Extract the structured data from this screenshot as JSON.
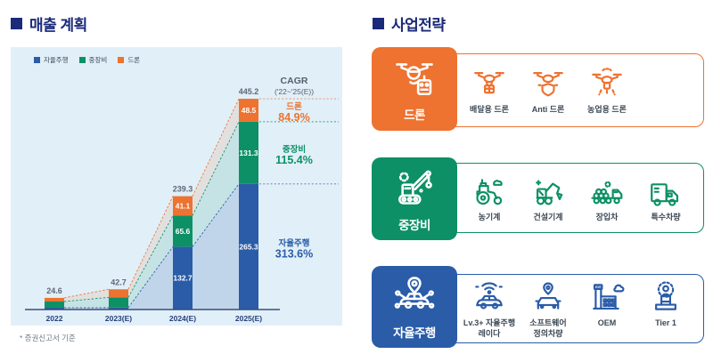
{
  "left": {
    "title": "매출 계획",
    "footnote": "* 증권신고서 기준"
  },
  "right": {
    "title": "사업전략",
    "rows": [
      {
        "label": "드론",
        "color": "#ee7230",
        "icon": "drone-remote-icon",
        "items": [
          {
            "icon": "delivery-drone-icon",
            "label": "배달용 드론"
          },
          {
            "icon": "anti-drone-icon",
            "label": "Anti 드론"
          },
          {
            "icon": "agri-drone-icon",
            "label": "농업용 드론"
          }
        ]
      },
      {
        "label": "중장비",
        "color": "#0d9065",
        "icon": "crawler-crane-icon",
        "items": [
          {
            "icon": "tractor-icon",
            "label": "농기계"
          },
          {
            "icon": "excavator-icon",
            "label": "건설기계"
          },
          {
            "icon": "loader-truck-icon",
            "label": "장입차"
          },
          {
            "icon": "special-vehicle-icon",
            "label": "특수차량"
          }
        ]
      },
      {
        "label": "자율주행",
        "color": "#2a5ca8",
        "icon": "autonomous-car-icon",
        "items": [
          {
            "icon": "radar-car-icon",
            "label": "Lv.3+ 자율주행\n레이다"
          },
          {
            "icon": "sdv-car-icon",
            "label": "소프트웨어\n정의차량"
          },
          {
            "icon": "factory-oem-icon",
            "label": "OEM"
          },
          {
            "icon": "podium-person-icon",
            "label": "Tier 1"
          }
        ]
      }
    ]
  },
  "chart_data": {
    "type": "bar",
    "stacked": true,
    "title": "매출 계획",
    "categories": [
      "2022",
      "2023(E)",
      "2024(E)",
      "2025(E)"
    ],
    "series": [
      {
        "name": "자율주행",
        "color": "#2a5ca8",
        "values": [
          3.8,
          4.0,
          132.7,
          265.3
        ],
        "value_labels": [
          null,
          null,
          "132.7",
          "265.3"
        ]
      },
      {
        "name": "중장비",
        "color": "#0d9065",
        "values": [
          13.1,
          21.7,
          65.6,
          131.3
        ],
        "value_labels": [
          null,
          null,
          "65.6",
          "131.3"
        ]
      },
      {
        "name": "드론",
        "color": "#ee7230",
        "values": [
          7.7,
          17.0,
          41.1,
          48.5
        ],
        "value_labels": [
          null,
          null,
          "41.1",
          "48.5"
        ]
      }
    ],
    "totals": [
      "24.6",
      "42.7",
      "239.3",
      "445.2"
    ],
    "cagr": {
      "title": "CAGR",
      "subtitle": "('22~'25(E))",
      "entries": [
        {
          "name": "드론",
          "value": "84.9%",
          "color": "#ee7230",
          "series": 2
        },
        {
          "name": "중장비",
          "value": "115.4%",
          "color": "#0d9065",
          "series": 1
        },
        {
          "name": "자율주행",
          "value": "313.6%",
          "color": "#2a5ca8",
          "series": 0
        }
      ]
    },
    "legend_position": "top-left",
    "grid": false,
    "ylim": [
      0,
      470
    ],
    "panel_background": "#e1eff8"
  },
  "colors": {
    "title_navy": "#1b2a7a",
    "axis": "#3b4e78",
    "total_label": "#5e6a78"
  }
}
